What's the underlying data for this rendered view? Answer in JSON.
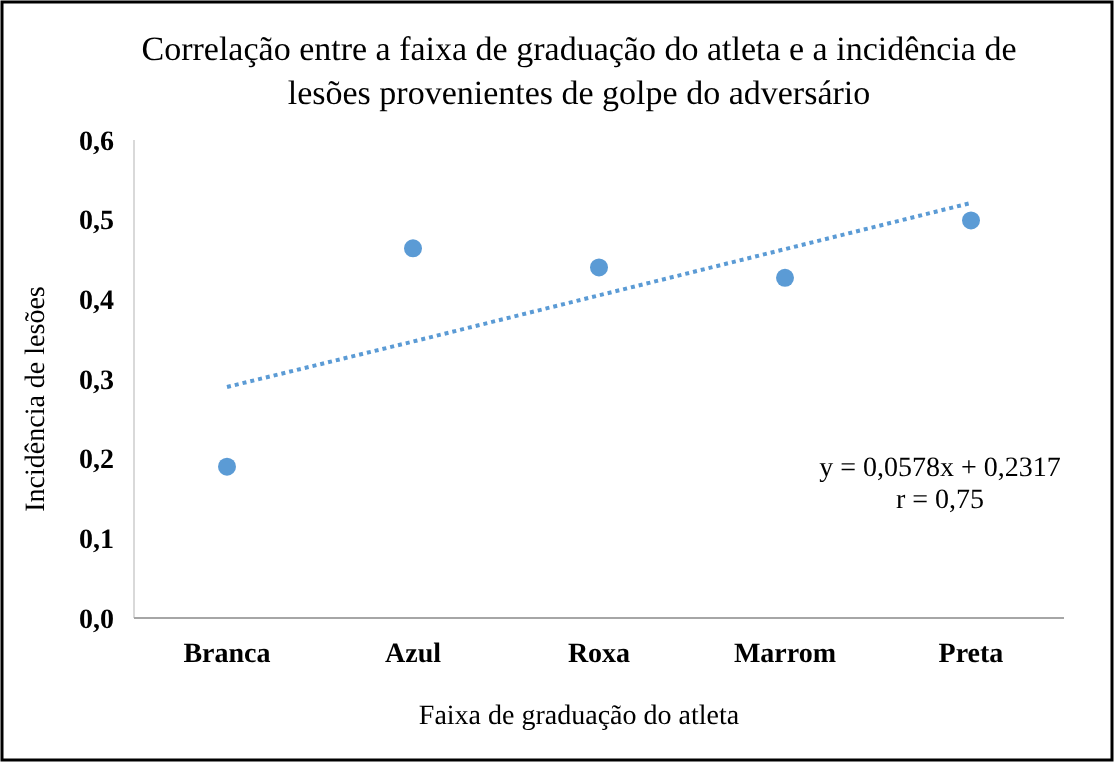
{
  "chart_data": {
    "type": "scatter",
    "title": "Correlação entre a faixa de graduação do atleta e a incidência de lesões provenientes de golpe do adversário",
    "xlabel": "Faixa de graduação do atleta",
    "ylabel": "Incidência de lesões",
    "categories": [
      "Branca",
      "Azul",
      "Roxa",
      "Marrom",
      "Preta"
    ],
    "series": [
      {
        "color": "#5b9bd5",
        "values": [
          0.19,
          0.464,
          0.44,
          0.427,
          0.499
        ],
        "marker": "circle"
      },
      {
        "type": "line",
        "color": "#5b9bd5",
        "values": [
          0.29,
          0.347,
          0.405,
          0.463,
          0.521
        ],
        "line_style": "dotted"
      }
    ],
    "ylim": [
      0,
      0.6
    ],
    "yticks": [
      {
        "value": 0,
        "label": "0,0"
      },
      {
        "value": 0.1,
        "label": "0,1"
      },
      {
        "value": 0.2,
        "label": "0,2"
      },
      {
        "value": 0.3,
        "label": "0,3"
      },
      {
        "value": 0.4,
        "label": "0,4"
      },
      {
        "value": 0.5,
        "label": "0,5"
      },
      {
        "value": 0.6,
        "label": "0,6"
      }
    ],
    "annotations": [
      "y = 0,0578x + 0,2317",
      "r = 0,75"
    ]
  }
}
